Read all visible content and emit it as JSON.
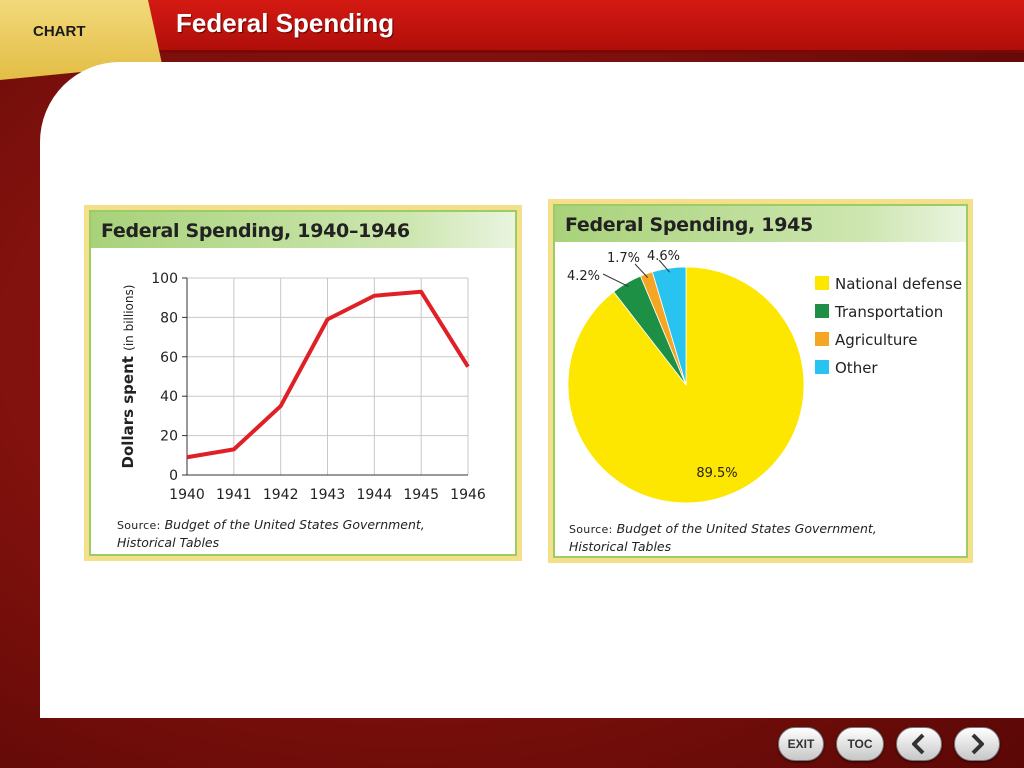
{
  "header": {
    "tab_label": "CHART",
    "title": "Federal Spending"
  },
  "line_panel": {
    "title": "Federal Spending, 1940–1946",
    "source_label": "Source:",
    "source_line1": "Budget of the United States Government,",
    "source_line2": "Historical Tables"
  },
  "pie_panel": {
    "title": "Federal Spending, 1945",
    "source_label": "Source:",
    "source_line1": "Budget of the United States Government,",
    "source_line2": "Historical Tables"
  },
  "chart_data": [
    {
      "type": "line",
      "title": "Federal Spending, 1940–1946",
      "x": [
        "1940",
        "1941",
        "1942",
        "1943",
        "1944",
        "1945",
        "1946"
      ],
      "series": [
        {
          "values": [
            9,
            13,
            35,
            79,
            91,
            93,
            55
          ],
          "color": "#e02027"
        }
      ],
      "ylabel_main": "Dollars spent",
      "ylabel_sub": "(in billions)",
      "xlabel": "",
      "ylim": [
        0,
        100
      ],
      "yticks": [
        0,
        20,
        40,
        60,
        80,
        100
      ],
      "grid": true
    },
    {
      "type": "pie",
      "title": "Federal Spending, 1945",
      "slices": [
        {
          "label": "National defense",
          "value": 89.5,
          "display": "89.5%",
          "color": "#fde600"
        },
        {
          "label": "Transportation",
          "value": 4.2,
          "display": "4.2%",
          "color": "#1e9046"
        },
        {
          "label": "Agriculture",
          "value": 1.7,
          "display": "1.7%",
          "color": "#f5a623"
        },
        {
          "label": "Other",
          "value": 4.6,
          "display": "4.6%",
          "color": "#29c3ef"
        }
      ],
      "legend_position": "right"
    }
  ],
  "nav": {
    "exit_label": "EXIT",
    "toc_label": "TOC",
    "prev_icon": "chevron-left-icon",
    "next_icon": "chevron-right-icon"
  }
}
